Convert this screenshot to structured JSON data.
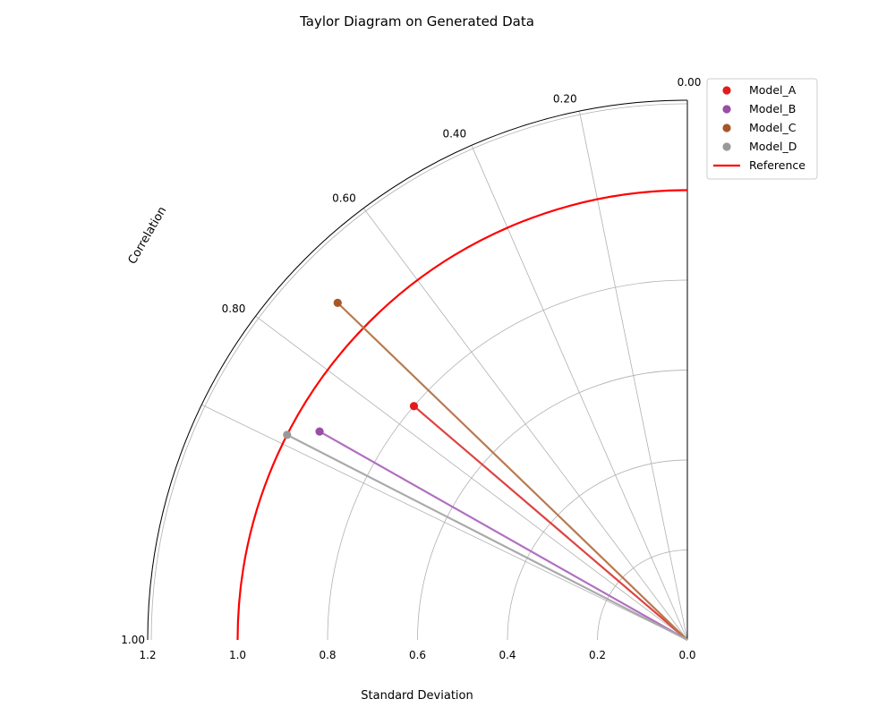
{
  "chart_data": {
    "type": "taylor",
    "title": "Taylor Diagram on Generated Data",
    "xlabel": "Standard Deviation",
    "angle_label": "Correlation",
    "std_range": [
      0,
      1.2
    ],
    "std_ticks": [
      "0.0",
      "0.2",
      "0.4",
      "0.6",
      "0.8",
      "1.0",
      "1.2"
    ],
    "std_tick_values": [
      0,
      0.2,
      0.4,
      0.6,
      0.8,
      1.0,
      1.2
    ],
    "correlation_ticks": [
      "0.00",
      "0.20",
      "0.40",
      "0.60",
      "0.80",
      "1.00"
    ],
    "correlation_tick_values": [
      0.0,
      0.2,
      0.4,
      0.6,
      0.8,
      1.0
    ],
    "grid": true,
    "legend_position": "top-right",
    "reference": {
      "name": "Reference",
      "std": 1.0,
      "color": "#ff0000"
    },
    "series": [
      {
        "name": "Model_A",
        "std": 0.8,
        "correlation": 0.76,
        "color": "#e41a1c",
        "line_color": "#dd4444"
      },
      {
        "name": "Model_B",
        "std": 0.94,
        "correlation": 0.87,
        "color": "#984ea3",
        "line_color": "#b070c0"
      },
      {
        "name": "Model_C",
        "std": 1.08,
        "correlation": 0.72,
        "color": "#a65628",
        "line_color": "#b87a50"
      },
      {
        "name": "Model_D",
        "std": 1.0,
        "correlation": 0.89,
        "color": "#999999",
        "line_color": "#aaaaaa"
      }
    ]
  }
}
